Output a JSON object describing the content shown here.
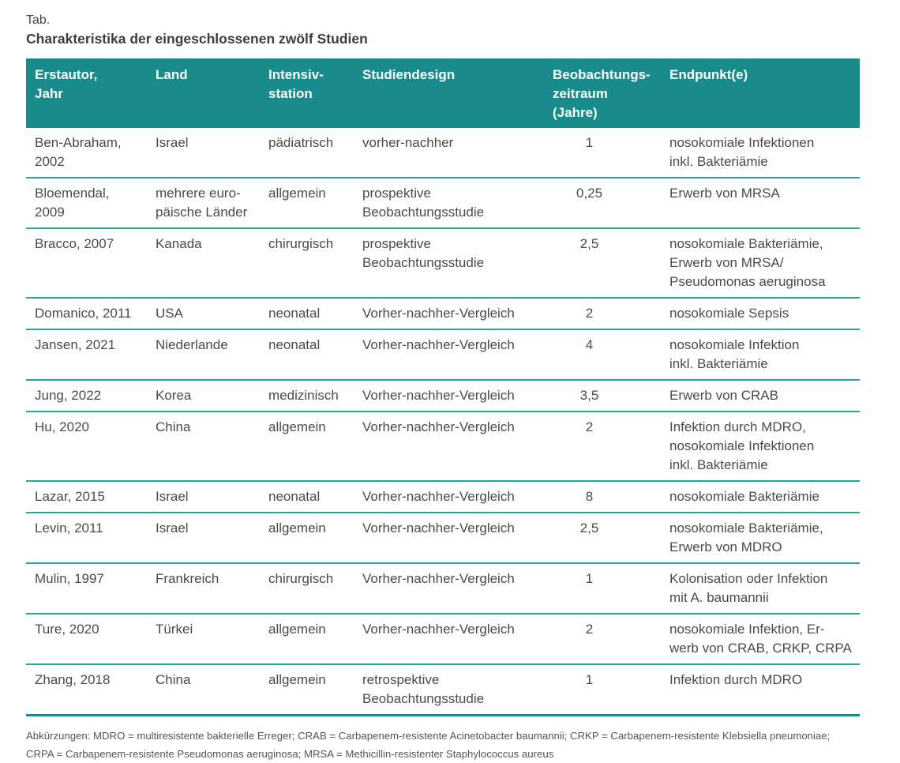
{
  "title": {
    "label": "Tab.",
    "text": "Charakteristika der eingeschlossenen zwölf Studien"
  },
  "colors": {
    "header_bg": "#198b8b",
    "row_divider": "#2fa19d",
    "table_bottom_border": "#17898a",
    "body_text": "#4a4a4a"
  },
  "table": {
    "columns": [
      {
        "label": "Erstautor,\nJahr"
      },
      {
        "label": "Land"
      },
      {
        "label": "Intensiv-\nstation"
      },
      {
        "label": "Studiendesign"
      },
      {
        "label": "Beobachtungs-\nzeitraum\n(Jahre)"
      },
      {
        "label": "Endpunkt(e)"
      }
    ],
    "rows": [
      {
        "author": "Ben-Abraham,\n2002",
        "land": "Israel",
        "station": "pädiatrisch",
        "design": "vorher-nachher",
        "zeitraum": "1",
        "endpunkt": "nosokomiale Infektionen\ninkl. Bakteriämie"
      },
      {
        "author": "Bloemendal,\n2009",
        "land": "mehrere euro-\npäische Länder",
        "station": "allgemein",
        "design": "prospektive\nBeobachtungsstudie",
        "zeitraum": "0,25",
        "endpunkt": "Erwerb von MRSA"
      },
      {
        "author": "Bracco, 2007",
        "land": "Kanada",
        "station": "chirurgisch",
        "design": "prospektive\nBeobachtungsstudie",
        "zeitraum": "2,5",
        "endpunkt": "nosokomiale Bakteriämie,\nErwerb von MRSA/\nPseudomonas aeruginosa"
      },
      {
        "author": "Domanico, 2011",
        "land": "USA",
        "station": "neonatal",
        "design": "Vorher-nachher-Vergleich",
        "zeitraum": "2",
        "endpunkt": "nosokomiale Sepsis"
      },
      {
        "author": "Jansen, 2021",
        "land": "Niederlande",
        "station": "neonatal",
        "design": "Vorher-nachher-Vergleich",
        "zeitraum": "4",
        "endpunkt": "nosokomiale Infektion\ninkl. Bakteriämie"
      },
      {
        "author": "Jung, 2022",
        "land": "Korea",
        "station": "medizinisch",
        "design": "Vorher-nachher-Vergleich",
        "zeitraum": "3,5",
        "endpunkt": "Erwerb von CRAB"
      },
      {
        "author": "Hu, 2020",
        "land": "China",
        "station": "allgemein",
        "design": "Vorher-nachher-Vergleich",
        "zeitraum": "2",
        "endpunkt": "Infektion durch MDRO,\nnosokomiale Infektionen\ninkl. Bakteriämie"
      },
      {
        "author": "Lazar, 2015",
        "land": "Israel",
        "station": "neonatal",
        "design": "Vorher-nachher-Vergleich",
        "zeitraum": "8",
        "endpunkt": "nosokomiale Bakteriämie"
      },
      {
        "author": "Levin, 2011",
        "land": "Israel",
        "station": "allgemein",
        "design": "Vorher-nachher-Vergleich",
        "zeitraum": "2,5",
        "endpunkt": "nosokomiale Bakteriämie,\nErwerb von MDRO"
      },
      {
        "author": "Mulin, 1997",
        "land": "Frankreich",
        "station": "chirurgisch",
        "design": "Vorher-nachher-Vergleich",
        "zeitraum": "1",
        "endpunkt": "Kolonisation oder Infektion\nmit A. baumannii"
      },
      {
        "author": "Ture, 2020",
        "land": "Türkei",
        "station": "allgemein",
        "design": "Vorher-nachher-Vergleich",
        "zeitraum": "2",
        "endpunkt": "nosokomiale Infektion, Er-\nwerb von CRAB, CRKP, CRPA"
      },
      {
        "author": "Zhang, 2018",
        "land": "China",
        "station": "allgemein",
        "design": "retrospektive\nBeobachtungsstudie",
        "zeitraum": "1",
        "endpunkt": "Infektion durch MDRO"
      }
    ]
  },
  "footnote": {
    "text": "Abkürzungen: MDRO = multiresistente bakterielle Erreger; CRAB = Carbapenem-resistente Acinetobacter baumannii; CRKP = Carbapenem-resistente Klebsiella pneumoniae;\nCRPA = Carbapenem-resistente Pseudomonas aeruginosa; MRSA = Methicillin-resistenter Staphylococcus aureus"
  }
}
